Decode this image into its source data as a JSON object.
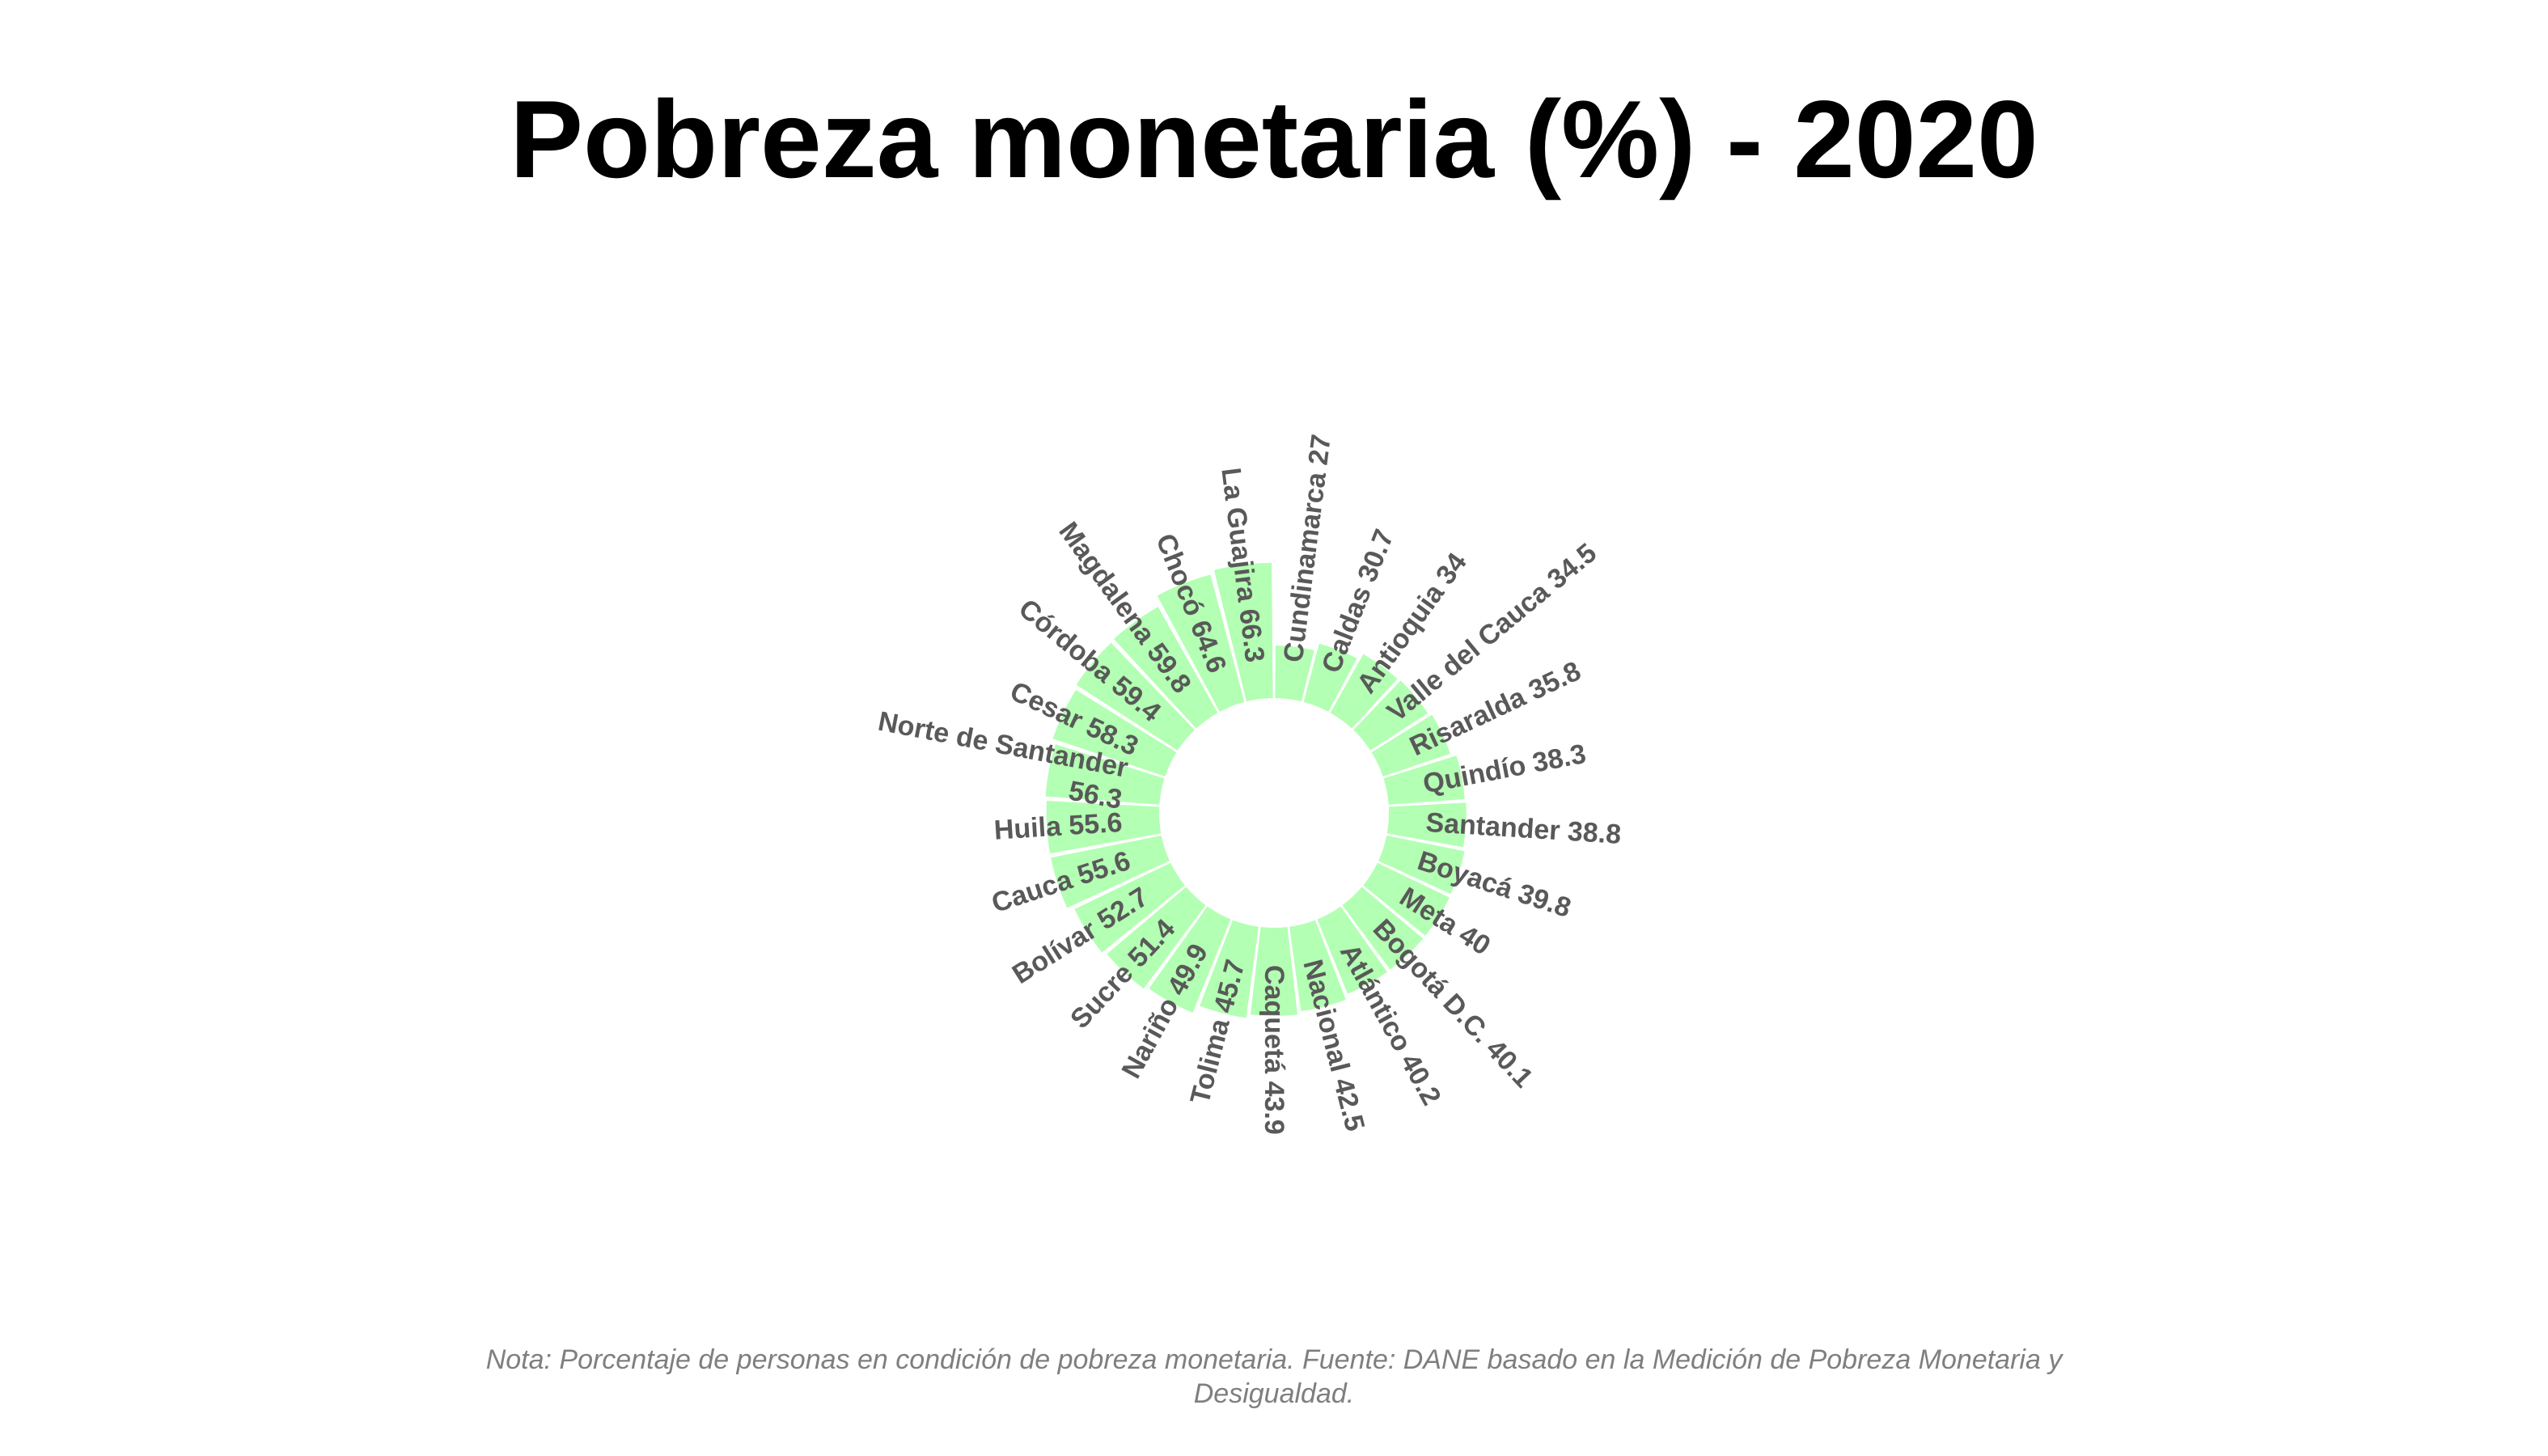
{
  "chart_data": {
    "type": "bar",
    "layout": "circular",
    "title": "Pobreza monetaria (%) - 2020",
    "note": "Nota: Porcentaje de personas en condición de pobreza monetaria. Fuente: DANE basado en la Medición de Pobreza Monetaria y Desigualdad.",
    "bar_color": "#b3ffb3",
    "label_color": "#595959",
    "categories": [
      "Cundinamarca",
      "Caldas",
      "Antioquia",
      "Valle del Cauca",
      "Risaralda",
      "Quindío",
      "Santander",
      "Boyacá",
      "Meta",
      "Bogotá D.C.",
      "Atlántico",
      "Nacional",
      "Caquetá",
      "Tolima",
      "Nariño",
      "Sucre",
      "Bolívar",
      "Cauca",
      "Huila",
      "Norte de Santander",
      "Cesar",
      "Córdoba",
      "Magdalena",
      "Chocó",
      "La Guajira"
    ],
    "values": [
      27,
      30.7,
      34,
      34.5,
      35.8,
      38.3,
      38.8,
      39.8,
      40,
      40.1,
      40.2,
      42.5,
      43.9,
      45.7,
      49.9,
      51.4,
      52.7,
      55.6,
      55.6,
      56.3,
      58.3,
      59.4,
      59.8,
      64.6,
      66.3
    ],
    "labels": [
      [
        "Cundinamarca 27"
      ],
      [
        "Caldas 30.7"
      ],
      [
        "Antioquia 34"
      ],
      [
        "Valle del Cauca 34.5"
      ],
      [
        "Risaralda 35.8"
      ],
      [
        "Quindío 38.3"
      ],
      [
        "Santander 38.8"
      ],
      [
        "Boyacá 39.8"
      ],
      [
        "Meta 40"
      ],
      [
        "Bogotá D.C. 40.1"
      ],
      [
        "Atlántico 40.2"
      ],
      [
        "Nacional 42.5"
      ],
      [
        "Caquetá 43.9"
      ],
      [
        "Tolima 45.7"
      ],
      [
        "Nariño 49.9"
      ],
      [
        "Sucre 51.4"
      ],
      [
        "Bolívar 52.7"
      ],
      [
        "Cauca 55.6"
      ],
      [
        "Huila 55.6"
      ],
      [
        "Norte de Santander",
        "56.3"
      ],
      [
        "Cesar 58.3"
      ],
      [
        "Córdoba 59.4"
      ],
      [
        "Magdalena 59.8"
      ],
      [
        "Chocó 64.6"
      ],
      [
        "La Guajira 66.3"
      ]
    ]
  }
}
